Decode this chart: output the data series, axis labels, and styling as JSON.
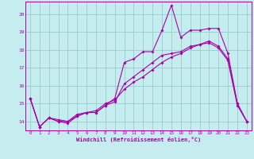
{
  "xlabel": "Windchill (Refroidissement éolien,°C)",
  "xlim": [
    -0.5,
    23.5
  ],
  "ylim": [
    13.5,
    20.7
  ],
  "yticks": [
    14,
    15,
    16,
    17,
    18,
    19,
    20
  ],
  "xticks": [
    0,
    1,
    2,
    3,
    4,
    5,
    6,
    7,
    8,
    9,
    10,
    11,
    12,
    13,
    14,
    15,
    16,
    17,
    18,
    19,
    20,
    21,
    22,
    23
  ],
  "bg_color": "#c5ecee",
  "line_color": "#aa00aa",
  "grid_color": "#99cccc",
  "line1_x": [
    0,
    1,
    2,
    3,
    4,
    5,
    6,
    7,
    8,
    9,
    10,
    11,
    12,
    13,
    14,
    15,
    16,
    17,
    18,
    19,
    20,
    21,
    22,
    23
  ],
  "line1_y": [
    15.3,
    13.7,
    14.2,
    14.0,
    14.0,
    14.4,
    14.5,
    14.5,
    14.9,
    15.3,
    17.3,
    17.5,
    17.9,
    17.9,
    19.1,
    20.5,
    18.7,
    19.1,
    19.1,
    19.2,
    19.2,
    17.8,
    15.0,
    14.0
  ],
  "line2_x": [
    0,
    1,
    2,
    3,
    4,
    5,
    6,
    7,
    8,
    9,
    10,
    11,
    12,
    13,
    14,
    15,
    16,
    17,
    18,
    19,
    20,
    21,
    22,
    23
  ],
  "line2_y": [
    15.3,
    13.7,
    14.2,
    14.0,
    13.9,
    14.3,
    14.5,
    14.5,
    14.9,
    15.1,
    16.1,
    16.5,
    16.9,
    17.3,
    17.7,
    17.8,
    17.9,
    18.2,
    18.3,
    18.5,
    18.2,
    17.5,
    15.0,
    14.0
  ],
  "line3_x": [
    0,
    1,
    2,
    3,
    4,
    5,
    6,
    7,
    8,
    9,
    10,
    11,
    12,
    13,
    14,
    15,
    16,
    17,
    18,
    19,
    20,
    21,
    22,
    23
  ],
  "line3_y": [
    15.3,
    13.7,
    14.2,
    14.1,
    14.0,
    14.3,
    14.5,
    14.6,
    15.0,
    15.2,
    15.8,
    16.2,
    16.5,
    16.9,
    17.3,
    17.6,
    17.8,
    18.1,
    18.3,
    18.4,
    18.1,
    17.4,
    14.9,
    14.0
  ]
}
